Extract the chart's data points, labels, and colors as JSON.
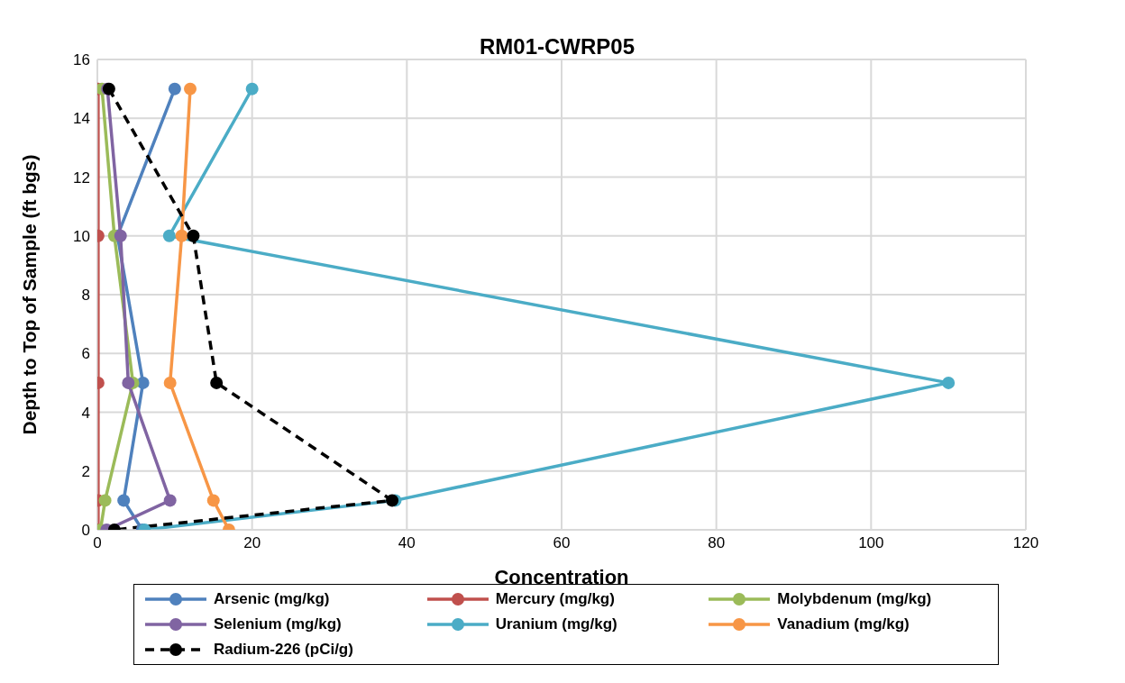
{
  "chart_data": {
    "type": "line",
    "title": "RM01-CWRP05",
    "xlabel": "Concentration",
    "ylabel": "Depth to Top of Sample (ft bgs)",
    "xlim": [
      0,
      120
    ],
    "xticks": [
      0,
      20,
      40,
      60,
      80,
      100,
      120
    ],
    "ylim": [
      0,
      16
    ],
    "yticks": [
      0,
      2,
      4,
      6,
      8,
      10,
      12,
      14,
      16
    ],
    "grid": true,
    "legend": "bottom",
    "marker": "circle",
    "series": [
      {
        "name": "Arsenic (mg/kg)",
        "color": "#4f81bd",
        "x": [
          10.0,
          2.6,
          5.9,
          3.4,
          5.8
        ],
        "values": [
          15,
          10,
          5,
          1,
          0
        ]
      },
      {
        "name": "Mercury (mg/kg)",
        "color": "#c0504d",
        "x": [
          0.1,
          0.1,
          0.1,
          0.1,
          0.1
        ],
        "values": [
          15,
          10,
          5,
          1,
          0
        ]
      },
      {
        "name": "Molybdenum (mg/kg)",
        "color": "#9bbb59",
        "x": [
          0.6,
          2.2,
          4.6,
          1.0,
          0.4
        ],
        "values": [
          15,
          10,
          5,
          1,
          0
        ]
      },
      {
        "name": "Selenium (mg/kg)",
        "color": "#8064a2",
        "x": [
          1.3,
          3.0,
          4.0,
          9.4,
          1.2
        ],
        "values": [
          15,
          10,
          5,
          1,
          0
        ]
      },
      {
        "name": "Uranium (mg/kg)",
        "color": "#4bacc6",
        "x": [
          20,
          9.3,
          110,
          38.5,
          6.1
        ],
        "values": [
          15,
          10,
          5,
          1,
          0
        ]
      },
      {
        "name": "Vanadium (mg/kg)",
        "color": "#f79646",
        "x": [
          12,
          10.9,
          9.4,
          15,
          17
        ],
        "values": [
          15,
          10,
          5,
          1,
          0
        ]
      },
      {
        "name": "Radium-226 (pCi/g)",
        "color": "#000000",
        "line_style": "dashed",
        "x": [
          1.5,
          12.4,
          15.4,
          38.1,
          2.2
        ],
        "values": [
          15,
          10,
          5,
          1,
          0
        ]
      }
    ]
  }
}
